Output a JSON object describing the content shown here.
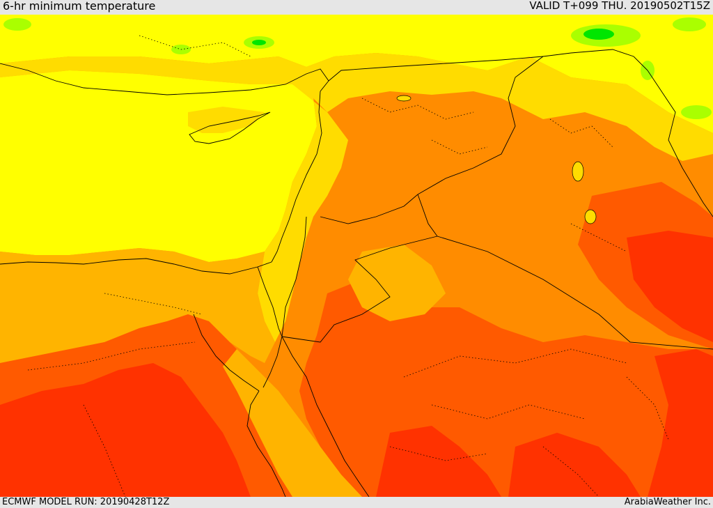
{
  "header": {
    "title": "6-hr minimum temperature",
    "valid": "VALID T+099 THU. 20190502T15Z"
  },
  "footer": {
    "model_run": "ECMWF MODEL RUN: 20190428T12Z",
    "credit": "ArabiaWeather Inc."
  },
  "colors": {
    "coldest_band": "#00e600",
    "cool_band": "#aaff00",
    "mild_band": "#ffff00",
    "warm_band": "#ffdc00",
    "warmer_band": "#ffb400",
    "hot_band": "#ff8c00",
    "hotter_band": "#ff5a00",
    "hottest_band": "#ff3200",
    "border_line": "#000000"
  }
}
